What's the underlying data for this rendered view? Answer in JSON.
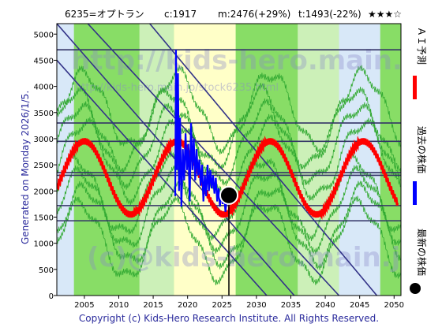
{
  "header": {
    "code_name": "6235=オプトラン",
    "current": "c:1917",
    "mean": "m:2476(+29%)",
    "target": "t:1493(-22%)",
    "stars": "★★★☆"
  },
  "generated_label": "Generated on Monday 2026/1/5.",
  "copyright": "Copyright (c) Kids-Hero Research Institute. All Rights Reserved.",
  "watermark": {
    "main": "http://kids-hero.main.jp/",
    "sub": "http://kids-hero.main.jp/stock6235.html",
    "bottom": "(c)@kids-hero.main.jp"
  },
  "legend": [
    {
      "label": "ＡＩ予測",
      "color": "#ff0000",
      "marker": "bar"
    },
    {
      "label": "過去の株価",
      "color": "#0000ff",
      "marker": "bar"
    },
    {
      "label": "最新の株価",
      "color": "#000000",
      "marker": "dot"
    }
  ],
  "colors": {
    "ai_line": "#ff0000",
    "price_line": "#0000ff",
    "band_green": "#33aa33",
    "level_line": "#333366",
    "diag_line": "#333388",
    "bg_green": "#88dd66",
    "bg_light_green": "#ccf0b8",
    "bg_yellow": "#ffffc8",
    "bg_blue": "#d8e8f8"
  },
  "chart_data": {
    "type": "line",
    "title": "6235=オプトラン",
    "xlim": [
      2001,
      2051
    ],
    "ylim": [
      0,
      5200
    ],
    "x_ticks": [
      2005,
      2010,
      2015,
      2020,
      2025,
      2030,
      2035,
      2040,
      2045,
      2050
    ],
    "y_ticks": [
      0,
      500,
      1000,
      1500,
      2000,
      2500,
      3000,
      3500,
      4000,
      4500,
      5000
    ],
    "horizontal_levels": [
      4700,
      3300,
      2950,
      2350,
      2300,
      1720,
      1430
    ],
    "latest_point": {
      "x": 2026.0,
      "y": 1917
    },
    "current": 1917,
    "mean": 2476,
    "target": 1493,
    "background_bands": [
      {
        "from": 2001,
        "to": 2003.5,
        "kind": "blue"
      },
      {
        "from": 2003.5,
        "to": 2013,
        "kind": "green"
      },
      {
        "from": 2013,
        "to": 2018,
        "kind": "light_green"
      },
      {
        "from": 2018,
        "to": 2027,
        "kind": "yellow"
      },
      {
        "from": 2027,
        "to": 2036,
        "kind": "green"
      },
      {
        "from": 2036,
        "to": 2042,
        "kind": "light_green"
      },
      {
        "from": 2042,
        "to": 2048,
        "kind": "blue"
      },
      {
        "from": 2048,
        "to": 2051,
        "kind": "green"
      }
    ],
    "diagonal_trends": [
      {
        "x1": 2001,
        "y1": 5200,
        "x2": 2035.5,
        "y2": 0
      },
      {
        "x1": 2005.5,
        "y1": 5200,
        "x2": 2042,
        "y2": 0
      },
      {
        "x1": 2014.5,
        "y1": 5200,
        "x2": 2047.5,
        "y2": 0
      },
      {
        "x1": 2001,
        "y1": 4500,
        "x2": 2031.5,
        "y2": 0
      }
    ],
    "series": [
      {
        "name": "ＡＩ予測",
        "color": "#ff0000",
        "period": 13.5,
        "peak_x": 2005,
        "mid": 2250,
        "amplitude": 700,
        "wiggle": 60,
        "x_start": 2001,
        "x_end": 2050.5
      },
      {
        "name": "過去の株価",
        "color": "#0000ff",
        "points": [
          [
            2018.2,
            1900
          ],
          [
            2018.3,
            4700
          ],
          [
            2018.45,
            2400
          ],
          [
            2018.6,
            4250
          ],
          [
            2018.75,
            2000
          ],
          [
            2018.9,
            3400
          ],
          [
            2019.1,
            1700
          ],
          [
            2019.3,
            2800
          ],
          [
            2019.5,
            2200
          ],
          [
            2019.7,
            3100
          ],
          [
            2019.9,
            2400
          ],
          [
            2020.1,
            2900
          ],
          [
            2020.3,
            1800
          ],
          [
            2020.5,
            3300
          ],
          [
            2020.7,
            2400
          ],
          [
            2020.9,
            3000
          ],
          [
            2021.1,
            2200
          ],
          [
            2021.3,
            2800
          ],
          [
            2021.5,
            2300
          ],
          [
            2021.7,
            2600
          ],
          [
            2021.9,
            2100
          ],
          [
            2022.1,
            2500
          ],
          [
            2022.3,
            1800
          ],
          [
            2022.5,
            2300
          ],
          [
            2022.7,
            1900
          ],
          [
            2022.9,
            2500
          ],
          [
            2023.1,
            2000
          ],
          [
            2023.3,
            2400
          ],
          [
            2023.5,
            2050
          ],
          [
            2023.7,
            2300
          ],
          [
            2023.9,
            1950
          ],
          [
            2024.1,
            2250
          ],
          [
            2024.3,
            1800
          ],
          [
            2024.5,
            2050
          ],
          [
            2024.7,
            1700
          ],
          [
            2024.9,
            2000
          ],
          [
            2025.1,
            1750
          ],
          [
            2025.3,
            1950
          ],
          [
            2025.5,
            1600
          ],
          [
            2025.7,
            1850
          ],
          [
            2025.85,
            1750
          ],
          [
            2026.0,
            1917
          ]
        ]
      }
    ]
  }
}
